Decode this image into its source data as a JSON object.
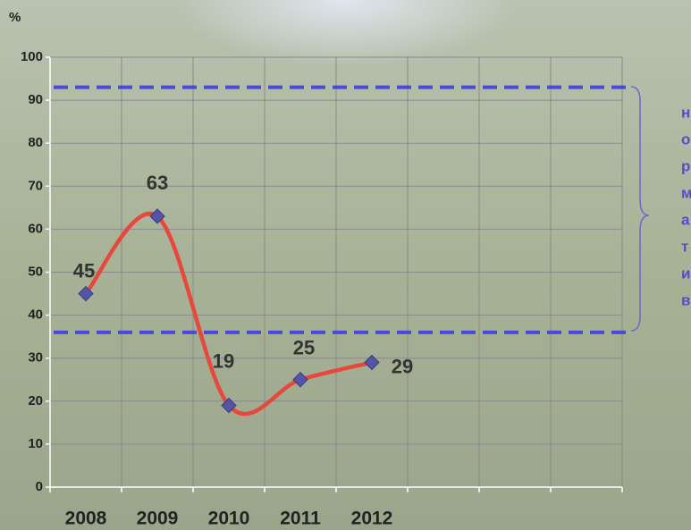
{
  "chart_data": {
    "type": "line",
    "y_label": "%",
    "categories": [
      "2008",
      "2009",
      "2010",
      "2011",
      "2012",
      null,
      null,
      null
    ],
    "series": [
      {
        "name": null,
        "color": "#e8473c",
        "marker_color": "#5555a8",
        "values": [
          45,
          63,
          19,
          25,
          29,
          null,
          null,
          null
        ]
      }
    ],
    "ylim": [
      0,
      100
    ],
    "yticks": [
      0,
      10,
      20,
      30,
      40,
      50,
      60,
      70,
      80,
      90,
      100
    ],
    "grid": true,
    "reference_lines": [
      93,
      36
    ],
    "reference_color": "#4a4ad8",
    "annotation": [
      "н",
      "о",
      "р",
      "м",
      "а",
      "т",
      "и",
      "в"
    ]
  }
}
